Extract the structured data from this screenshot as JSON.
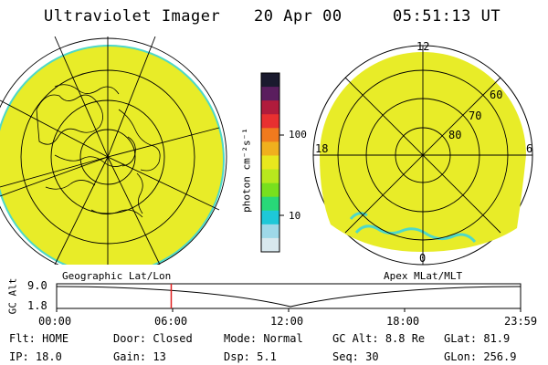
{
  "header": {
    "instrument": "Ultraviolet Imager",
    "date": "20 Apr 00",
    "time": "05:51:13 UT"
  },
  "left_panel": {
    "projection_label": "Geographic Lat/Lon"
  },
  "right_panel": {
    "projection_label": "Apex MLat/MLT",
    "mlt_labels": [
      "12",
      "18",
      "6",
      "0"
    ],
    "lat_labels": [
      "60",
      "70",
      "80"
    ]
  },
  "colorbar": {
    "unit_label": "photon cm⁻²s⁻¹",
    "tick_labels": [
      "100",
      "10"
    ],
    "colors": [
      "#1a1a2e",
      "#5a1e5e",
      "#b01c3c",
      "#e83030",
      "#f07a1e",
      "#f0b01e",
      "#e8e81e",
      "#b8e81e",
      "#78e01e",
      "#28d878",
      "#1ec8d8",
      "#9ed8e8",
      "#d8e8ee"
    ]
  },
  "altitude_plot": {
    "axis_label": "GC Alt",
    "y_ticks": [
      "9.0",
      "1.8"
    ],
    "x_ticks": [
      "00:00",
      "06:00",
      "12:00",
      "18:00",
      "23:59"
    ],
    "current_time_fraction": 0.247
  },
  "status": {
    "row1": [
      {
        "label": "Flt:",
        "value": "HOME"
      },
      {
        "label": "Door:",
        "value": "Closed"
      },
      {
        "label": "Mode:",
        "value": "Normal"
      },
      {
        "label": "GC Alt:",
        "value": "8.8 Re"
      },
      {
        "label": "GLat:",
        "value": "81.9"
      }
    ],
    "row2": [
      {
        "label": "IP:",
        "value": "18.0"
      },
      {
        "label": "Gain:",
        "value": "13"
      },
      {
        "label": "Dsp:",
        "value": "5.1"
      },
      {
        "label": "Seq:",
        "value": "30"
      },
      {
        "label": "GLon:",
        "value": "256.9"
      }
    ]
  },
  "colors": {
    "emission_fill": "#e8ec28",
    "edge_fill": "#4ed8c8",
    "marker": "#e02020"
  }
}
